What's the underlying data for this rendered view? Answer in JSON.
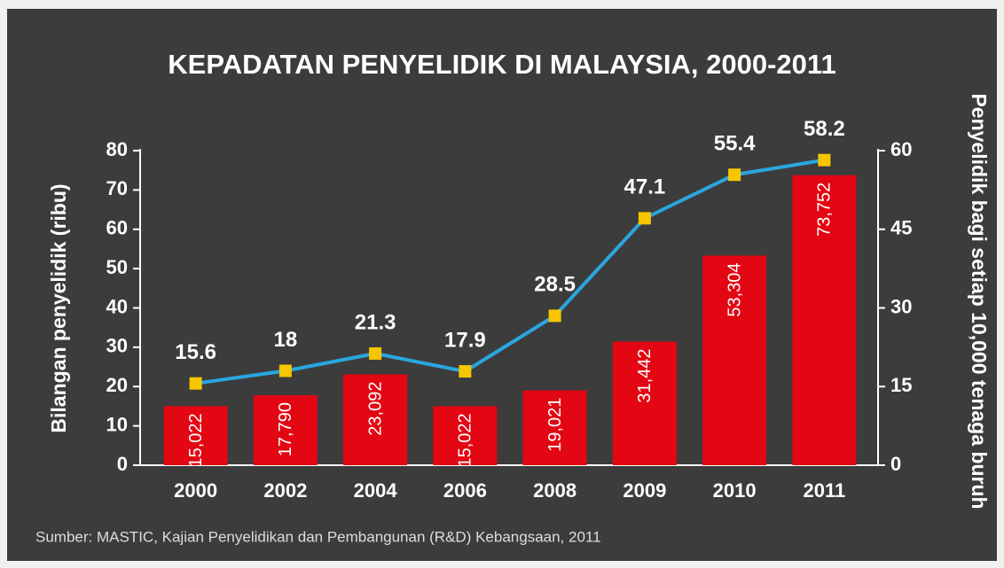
{
  "chart_data": {
    "type": "bar",
    "title": "KEPADATAN PENYELIDIK DI MALAYSIA, 2000-2011",
    "y_label": "Bilangan penyelidik (ribu)",
    "y2_label": "Penyelidik bagi setiap 10,000 tenaga buruh",
    "source": "Sumber: MASTIC, Kajian Penyelidikan dan Pembangunan (R&D) Kebangsaan, 2011",
    "categories": [
      "2000",
      "2002",
      "2004",
      "2006",
      "2008",
      "2009",
      "2010",
      "2011"
    ],
    "series": [
      {
        "name": "Bilangan penyelidik",
        "type": "bar",
        "color": "#e30613",
        "values": [
          15.022,
          17.79,
          23.092,
          15.022,
          19.021,
          31.442,
          53.304,
          73.752
        ],
        "value_labels": [
          "15,022",
          "17,790",
          "23,092",
          "15,022",
          "19,021",
          "31,442",
          "53,304",
          "73,752"
        ]
      },
      {
        "name": "Penyelidik bagi setiap 10,000 tenaga buruh",
        "type": "line",
        "axis": "y2",
        "color": "#2aa6de",
        "marker_color": "#f7c600",
        "values": [
          15.6,
          18,
          21.3,
          17.9,
          28.5,
          47.1,
          55.4,
          58.2
        ]
      }
    ],
    "ylim": [
      0,
      80
    ],
    "yticks": [
      0,
      10,
      20,
      30,
      40,
      50,
      60,
      70,
      80
    ],
    "y2lim": [
      0,
      60
    ],
    "y2ticks": [
      0,
      15,
      30,
      45,
      60
    ]
  }
}
